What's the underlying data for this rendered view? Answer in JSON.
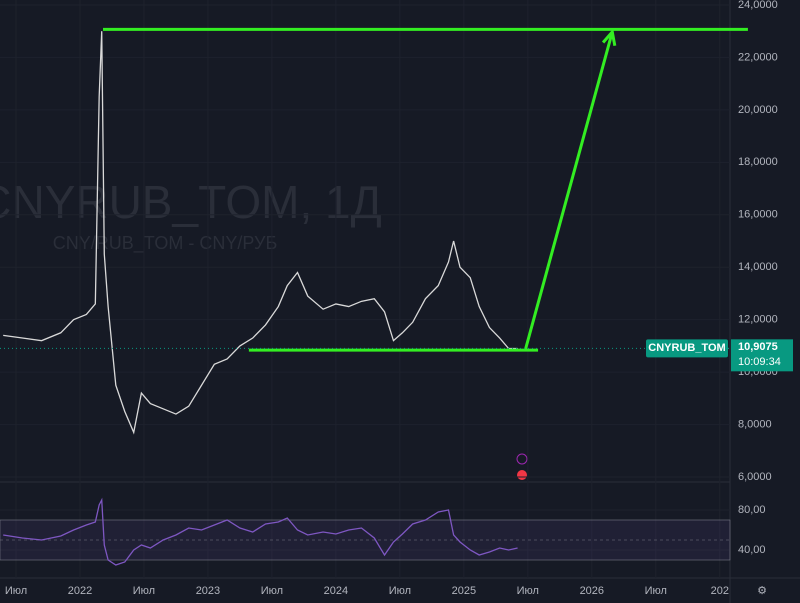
{
  "chart_data": [
    {
      "type": "line",
      "watermark": "CNYRUB_TOM, 1Д",
      "watermark_subtitle": "CNY/RUB_TOM - CNY/РУБ",
      "x": [
        2021.4,
        2021.55,
        2021.7,
        2021.85,
        2021.95,
        2022.05,
        2022.12,
        2022.15,
        2022.17,
        2022.19,
        2022.22,
        2022.28,
        2022.35,
        2022.42,
        2022.48,
        2022.55,
        2022.65,
        2022.75,
        2022.85,
        2022.95,
        2023.05,
        2023.15,
        2023.25,
        2023.35,
        2023.45,
        2023.55,
        2023.62,
        2023.7,
        2023.78,
        2023.9,
        2024.0,
        2024.1,
        2024.2,
        2024.3,
        2024.38,
        2024.45,
        2024.52,
        2024.6,
        2024.7,
        2024.8,
        2024.88,
        2024.92,
        2024.97,
        2025.05,
        2025.12,
        2025.2,
        2025.28,
        2025.35,
        2025.42
      ],
      "series": [
        {
          "name": "CNYRUB_TOM",
          "color": "#d9d9d9",
          "values": [
            11.4,
            11.3,
            11.2,
            11.5,
            12.0,
            12.2,
            12.6,
            20.5,
            23.0,
            14.5,
            12.5,
            9.5,
            8.5,
            7.7,
            9.2,
            8.8,
            8.6,
            8.4,
            8.7,
            9.5,
            10.3,
            10.5,
            11.0,
            11.3,
            11.8,
            12.5,
            13.3,
            13.8,
            12.9,
            12.4,
            12.6,
            12.5,
            12.7,
            12.8,
            12.3,
            11.2,
            11.5,
            11.9,
            12.8,
            13.3,
            14.2,
            15.0,
            14.0,
            13.6,
            12.5,
            11.7,
            11.3,
            10.9,
            10.9
          ]
        }
      ],
      "last_value": {
        "value": 10.9075,
        "label": "10,9075"
      },
      "last_time": "10:09:34",
      "lines": [
        {
          "color": "#33ee22",
          "x": [
            2022.18,
            2027.22
          ],
          "y": [
            23.07,
            23.07
          ]
        },
        {
          "color": "#33ee22",
          "x": [
            2023.32,
            2025.58
          ],
          "y": [
            10.84,
            10.84
          ]
        }
      ],
      "arrow": {
        "color": "#33ee22",
        "x": [
          2025.48,
          2026.16
        ],
        "y": [
          10.84,
          22.97
        ]
      },
      "xlim": [
        2021.375,
        2027.08
      ],
      "xticks": [
        {
          "value": 2021.5,
          "label": "Июл"
        },
        2022,
        {
          "value": 2022.5,
          "label": "Июл"
        },
        2023,
        {
          "value": 2023.5,
          "label": "Июл"
        },
        2024,
        {
          "value": 2024.5,
          "label": "Июл"
        },
        2025,
        {
          "value": 2025.5,
          "label": "Июл"
        },
        2026,
        {
          "value": 2026.5,
          "label": "Июл"
        },
        {
          "value": 2027,
          "label": "202"
        }
      ],
      "ylim": [
        5.81,
        24.19
      ],
      "yticks": [
        {
          "value": 6,
          "label": "6,0000"
        },
        {
          "value": 8,
          "label": "8,0000"
        },
        {
          "value": 10,
          "label": "10,0000"
        },
        {
          "value": 12,
          "label": "12,0000"
        },
        {
          "value": 14,
          "label": "14,0000"
        },
        {
          "value": 16,
          "label": "16,0000"
        },
        {
          "value": 18,
          "label": "18,0000"
        },
        {
          "value": 20,
          "label": "20,0000"
        },
        {
          "value": 22,
          "label": "22,0000"
        },
        {
          "value": 24,
          "label": "24,0000"
        }
      ]
    },
    {
      "type": "line",
      "series": [
        {
          "color": "#7e57c2",
          "values": [
            55,
            52,
            50,
            54,
            60,
            65,
            68,
            85,
            90,
            45,
            30,
            25,
            28,
            40,
            45,
            42,
            50,
            55,
            62,
            60,
            65,
            70,
            62,
            58,
            66,
            68,
            72,
            60,
            55,
            58,
            56,
            60,
            62,
            52,
            35,
            48,
            56,
            66,
            70,
            78,
            80,
            55,
            48,
            40,
            35,
            38,
            42,
            40,
            42
          ]
        }
      ],
      "band": [
        30,
        70
      ],
      "midline": 50,
      "ylim": [
        12,
        108
      ],
      "yticks": [
        {
          "value": 40,
          "label": "40,00"
        },
        {
          "value": 80,
          "label": "80,00"
        }
      ]
    }
  ]
}
